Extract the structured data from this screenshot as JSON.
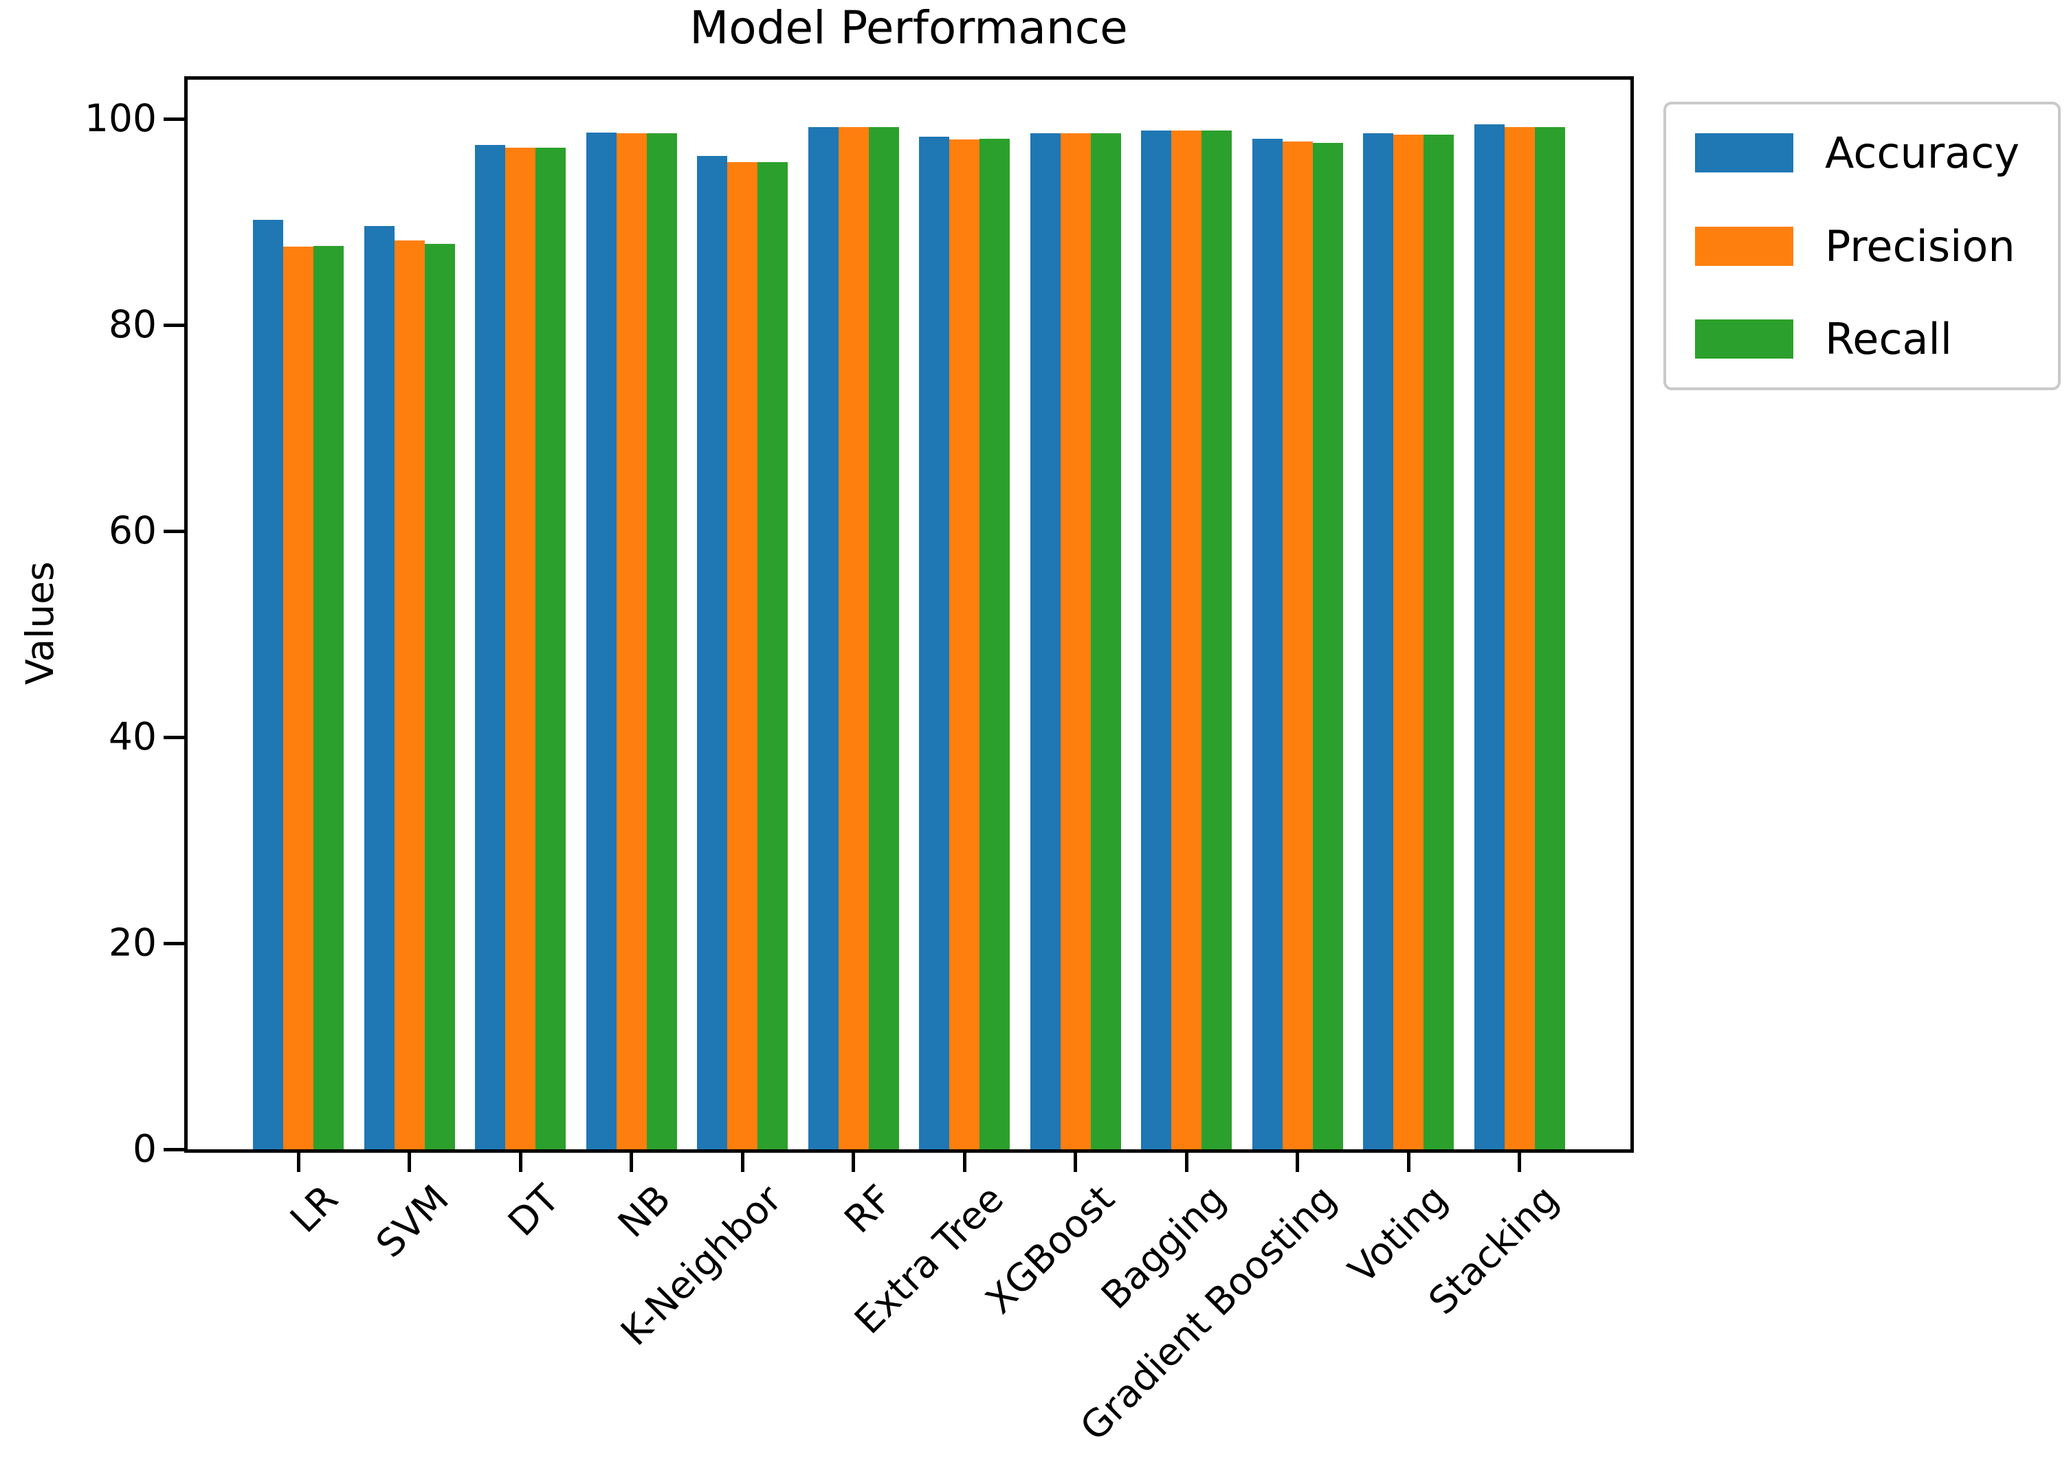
{
  "chart_data": {
    "type": "bar",
    "title": "Model Performance",
    "xlabel": "",
    "ylabel": "Values",
    "categories": [
      "LR",
      "SVM",
      "DT",
      "NB",
      "K-Neighbor",
      "RF",
      "Extra Tree",
      "XGBoost",
      "Bagging",
      "Gradient Boosting",
      "Voting",
      "Stacking"
    ],
    "series": [
      {
        "name": "Accuracy",
        "color": "#1f77b4",
        "values": [
          90.2,
          89.6,
          97.5,
          98.7,
          96.4,
          99.2,
          98.3,
          98.6,
          98.9,
          98.1,
          98.6,
          99.5
        ]
      },
      {
        "name": "Precision",
        "color": "#ff7f0e",
        "values": [
          87.6,
          88.2,
          97.2,
          98.6,
          95.8,
          99.2,
          98.0,
          98.6,
          98.9,
          97.8,
          98.5,
          99.2
        ]
      },
      {
        "name": "Recall",
        "color": "#2ca02c",
        "values": [
          87.7,
          87.9,
          97.2,
          98.6,
          95.8,
          99.2,
          98.1,
          98.6,
          98.9,
          97.7,
          98.5,
          99.2
        ]
      }
    ],
    "yticks": [
      0,
      20,
      40,
      60,
      80,
      100
    ],
    "ylim": [
      0,
      104
    ],
    "grid": false,
    "legend_position": "upper-right-outside",
    "x_tick_rotation": 45,
    "axis_color": "#000000",
    "text_color": "#000000",
    "legend_border_color": "#c9c9c9"
  }
}
